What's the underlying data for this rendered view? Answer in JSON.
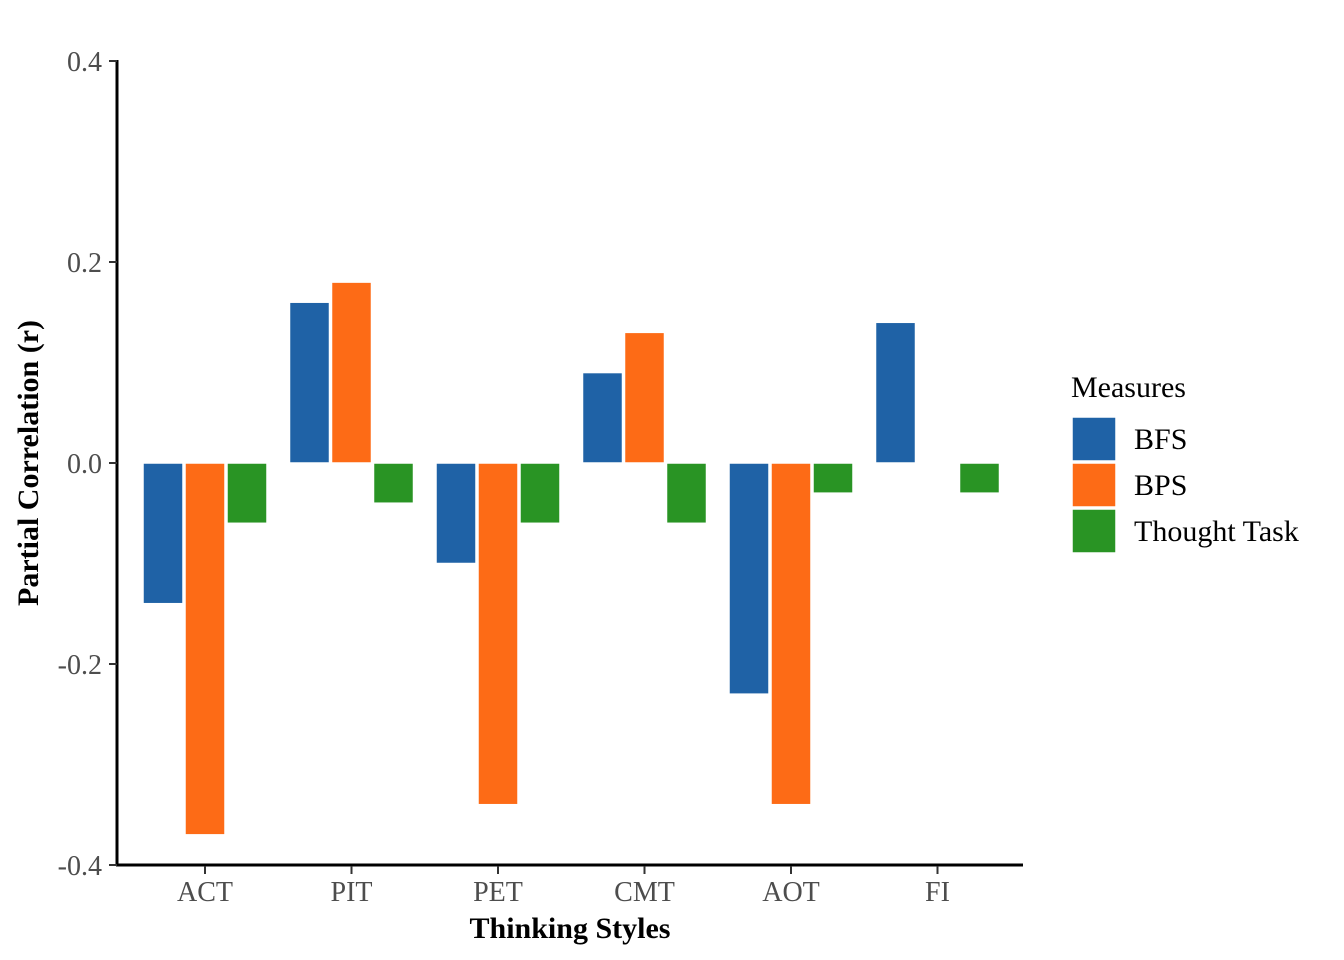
{
  "chart_data": {
    "type": "bar",
    "xlabel": "Thinking Styles",
    "ylabel": "Partial Correlation (r)",
    "ylim": [
      -0.4,
      0.4
    ],
    "yticks": [
      "-0.4",
      "-0.2",
      "0.0",
      "0.2",
      "0.4"
    ],
    "grid": false,
    "legend": {
      "title": "Measures",
      "position": "right"
    },
    "categories": [
      "ACT",
      "PIT",
      "PET",
      "CMT",
      "AOT",
      "FI"
    ],
    "series": [
      {
        "name": "BFS",
        "color": "#1F62A6",
        "values": [
          -0.14,
          0.16,
          -0.1,
          0.09,
          -0.23,
          0.14
        ]
      },
      {
        "name": "BPS",
        "color": "#FD6B16",
        "values": [
          -0.37,
          0.18,
          -0.34,
          0.13,
          -0.34,
          null
        ]
      },
      {
        "name": "Thought Task",
        "color": "#299424",
        "values": [
          -0.06,
          -0.04,
          -0.06,
          -0.06,
          -0.03,
          -0.03
        ]
      }
    ]
  }
}
